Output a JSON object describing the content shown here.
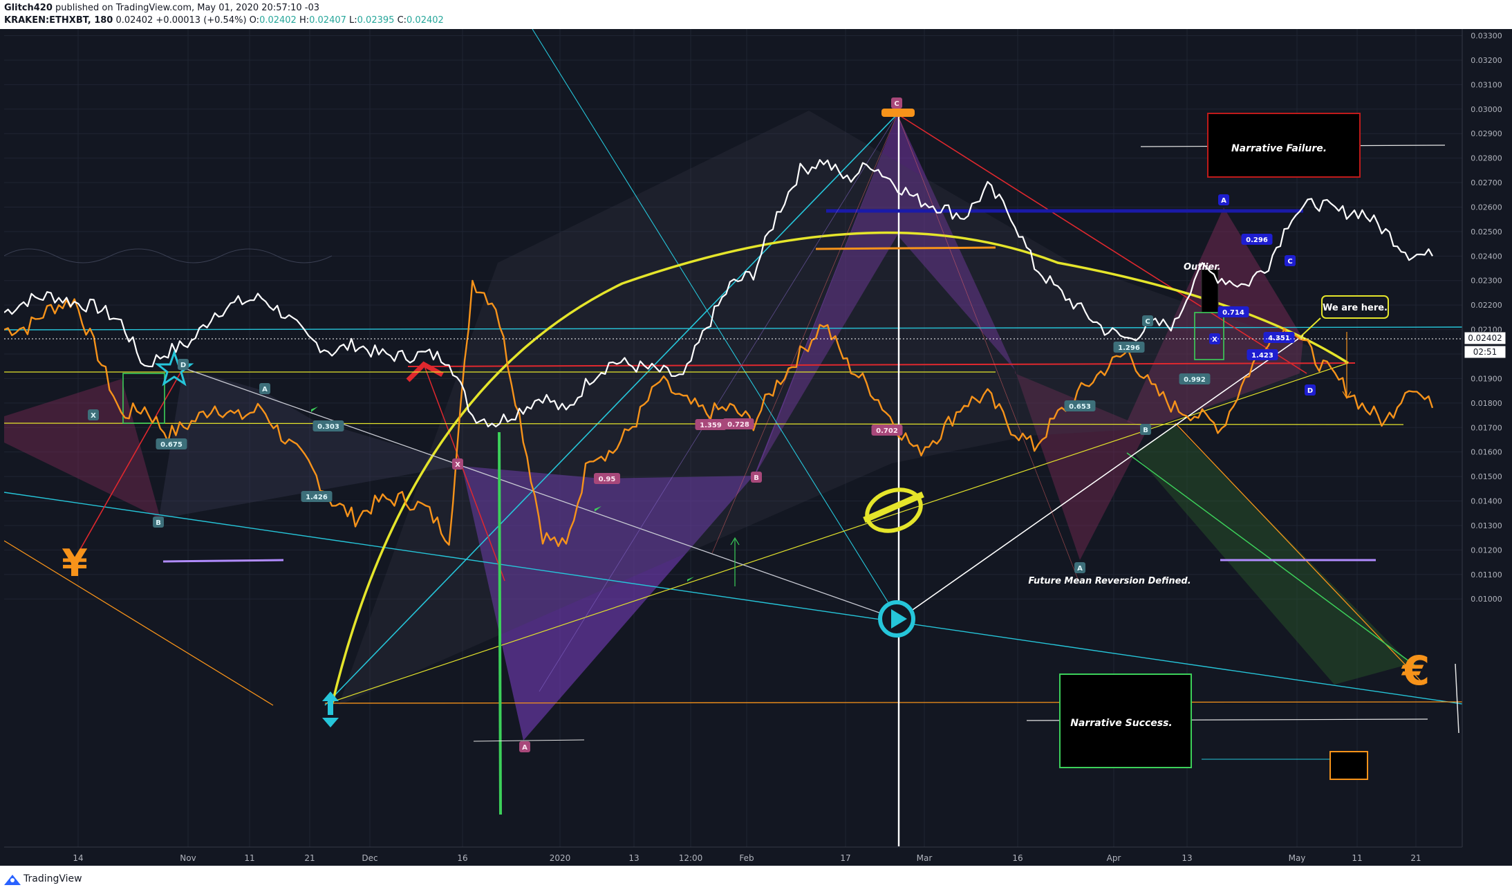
{
  "header": {
    "publisher": "Glitch420",
    "published_text": "published on TradingView.com, May 01, 2020 20:57:10 -03",
    "symbol": "KRAKEN:ETHXBT, 180",
    "last": "0.02402",
    "change": "+0.00013 (+0.54%)",
    "o_label": "O:",
    "o": "0.02402",
    "h_label": "H:",
    "h": "0.02407",
    "l_label": "L:",
    "l": "0.02395",
    "c_label": "C:",
    "c": "0.02402"
  },
  "footer": {
    "brand": "TradingView"
  },
  "price_badge": {
    "price": "0.02402",
    "countdown": "02:51"
  },
  "colors": {
    "background": "#131722",
    "price_line": "#ffffff",
    "orange_line": "#f7931a",
    "yellow": "#e5e52b",
    "cyan": "#26c6da",
    "red": "#e0282e",
    "purple": "#7e3fc6",
    "green": "#3cd05a"
  },
  "annotations": {
    "narrative_failure": "Narrative Failure.",
    "narrative_success": "Narrative Success.",
    "outlier": "Outlier.",
    "we_are_here": "We are here.",
    "future_mean": "Future Mean Reversion Defined.",
    "yen": "¥",
    "euro": "€"
  },
  "pattern_labels": [
    {
      "text": "D",
      "style": "teal"
    },
    {
      "text": "B",
      "style": "teal"
    },
    {
      "text": "A",
      "style": "teal"
    },
    {
      "text": "X",
      "style": "teal"
    },
    {
      "text": "0.675",
      "style": "teal"
    },
    {
      "text": "0.303",
      "style": "teal"
    },
    {
      "text": "1.426",
      "style": "teal"
    },
    {
      "text": "X",
      "style": "pink"
    },
    {
      "text": "A",
      "style": "pink"
    },
    {
      "text": "C",
      "style": "pink"
    },
    {
      "text": "0.95",
      "style": "pink"
    },
    {
      "text": "1.359",
      "style": "pink"
    },
    {
      "text": "0.728",
      "style": "pink"
    },
    {
      "text": "0.702",
      "style": "pink"
    },
    {
      "text": "B",
      "style": "pink"
    },
    {
      "text": "C",
      "style": "teal"
    },
    {
      "text": "1.296",
      "style": "teal"
    },
    {
      "text": "0.653",
      "style": "teal"
    },
    {
      "text": "A",
      "style": "teal"
    },
    {
      "text": "B",
      "style": "teal"
    },
    {
      "text": "0.992",
      "style": "teal"
    },
    {
      "text": "A",
      "style": "blue"
    },
    {
      "text": "0.296",
      "style": "blue"
    },
    {
      "text": "C",
      "style": "blue"
    },
    {
      "text": "0.714",
      "style": "blue"
    },
    {
      "text": "X",
      "style": "blue"
    },
    {
      "text": "4.351",
      "style": "blue"
    },
    {
      "text": "1.423",
      "style": "blue"
    },
    {
      "text": "D",
      "style": "blue"
    }
  ],
  "chart_data": {
    "type": "line",
    "symbol": "KRAKEN:ETHXBT",
    "interval": "180",
    "x_ticks": [
      "14",
      "Nov",
      "11",
      "21",
      "Dec",
      "16",
      "2020",
      "13",
      "12:00",
      "Feb",
      "17",
      "Mar",
      "16",
      "Apr",
      "13",
      "May",
      "11",
      "21"
    ],
    "y_ticks": [
      "0.03300",
      "0.03200",
      "0.03100",
      "0.03000",
      "0.02900",
      "0.02800",
      "0.02700",
      "0.02600",
      "0.02500",
      "0.02400",
      "0.02300",
      "0.02200",
      "0.02100",
      "0.02000",
      "0.01900",
      "0.01800",
      "0.01700",
      "0.01600",
      "0.01500",
      "0.01400",
      "0.01300",
      "0.01200",
      "0.01100",
      "0.01000"
    ],
    "ylim": [
      0.0092,
      0.033
    ],
    "grid": true,
    "series": [
      {
        "x": [
          "Oct 10",
          "Oct 14",
          "Oct 18",
          "Oct 22",
          "Oct 26",
          "Oct 29",
          "Oct 31",
          "Nov 3",
          "Nov 7",
          "Nov 11",
          "Nov 15",
          "Nov 19",
          "Nov 21",
          "Nov 25",
          "Nov 29",
          "Dec 3",
          "Dec 7",
          "Dec 11",
          "Dec 14",
          "Dec 17",
          "Dec 20",
          "Dec 24",
          "Dec 28",
          "Jan 1",
          "Jan 5",
          "Jan 9",
          "Jan 13",
          "Jan 17",
          "Jan 21",
          "Jan 25",
          "Jan 29",
          "Feb 2",
          "Feb 5",
          "Feb 8",
          "Feb 10",
          "Feb 12",
          "Feb 14",
          "Feb 17",
          "Feb 20",
          "Feb 23",
          "Feb 26",
          "Mar 1",
          "Mar 4",
          "Mar 7",
          "Mar 10",
          "Mar 12",
          "Mar 15",
          "Mar 18",
          "Mar 22",
          "Mar 26",
          "Mar 30",
          "Apr 3",
          "Apr 6",
          "Apr 9",
          "Apr 12",
          "Apr 15",
          "Apr 18",
          "Apr 21",
          "Apr 24",
          "Apr 27",
          "Apr 30",
          "May 1"
        ],
        "values": [
          0.0217,
          0.0222,
          0.0224,
          0.0221,
          0.0219,
          0.0213,
          0.0195,
          0.0201,
          0.0205,
          0.0217,
          0.0221,
          0.0223,
          0.0216,
          0.0206,
          0.0201,
          0.0204,
          0.02,
          0.0199,
          0.02,
          0.0198,
          0.0175,
          0.0172,
          0.0177,
          0.0183,
          0.0176,
          0.019,
          0.0197,
          0.0195,
          0.0193,
          0.019,
          0.0211,
          0.0228,
          0.0233,
          0.0257,
          0.0275,
          0.0279,
          0.0271,
          0.0278,
          0.027,
          0.0263,
          0.026,
          0.0256,
          0.0268,
          0.0257,
          0.0236,
          0.0226,
          0.0218,
          0.021,
          0.0206,
          0.0212,
          0.0212,
          0.0235,
          0.0231,
          0.0228,
          0.0237,
          0.0257,
          0.0262,
          0.0258,
          0.0258,
          0.025,
          0.0241,
          0.024
        ]
      },
      {
        "x": [
          "Oct 10",
          "Oct 14",
          "Oct 18",
          "Oct 22",
          "Oct 26",
          "Oct 29",
          "Oct 31",
          "Nov 3",
          "Nov 7",
          "Nov 11",
          "Nov 15",
          "Nov 19",
          "Nov 21",
          "Nov 25",
          "Nov 29",
          "Dec 3",
          "Dec 7",
          "Dec 11",
          "Dec 14",
          "Dec 17",
          "Dec 20",
          "Dec 24",
          "Dec 28",
          "Jan 1",
          "Jan 5",
          "Jan 9",
          "Jan 13",
          "Jan 17",
          "Jan 21",
          "Jan 25",
          "Jan 29",
          "Feb 2",
          "Feb 5",
          "Feb 8",
          "Feb 10",
          "Feb 12",
          "Feb 14",
          "Feb 17",
          "Feb 20",
          "Feb 23",
          "Feb 26",
          "Mar 1",
          "Mar 4",
          "Mar 7",
          "Mar 10",
          "Mar 12",
          "Mar 15",
          "Mar 18",
          "Mar 22",
          "Mar 26",
          "Mar 30",
          "Apr 3",
          "Apr 6",
          "Apr 9",
          "Apr 12",
          "Apr 15",
          "Apr 18",
          "Apr 21",
          "Apr 24",
          "Apr 27",
          "Apr 30",
          "May 1"
        ],
        "values": [
          0.021,
          0.0211,
          0.0219,
          0.0222,
          0.02,
          0.0175,
          0.0178,
          0.0167,
          0.0172,
          0.0179,
          0.0174,
          0.0178,
          0.0165,
          0.0155,
          0.014,
          0.0133,
          0.014,
          0.0141,
          0.0137,
          0.0125,
          0.023,
          0.022,
          0.0175,
          0.0126,
          0.0121,
          0.0159,
          0.016,
          0.0173,
          0.0189,
          0.0181,
          0.0176,
          0.0178,
          0.0172,
          0.0188,
          0.02,
          0.0213,
          0.0196,
          0.0186,
          0.0172,
          0.016,
          0.0168,
          0.018,
          0.0183,
          0.017,
          0.0162,
          0.0175,
          0.0185,
          0.0194,
          0.0201,
          0.0186,
          0.0178,
          0.0175,
          0.017,
          0.019,
          0.0207,
          0.0211,
          0.0198,
          0.0189,
          0.0179,
          0.0172,
          0.0188,
          0.0178
        ]
      }
    ]
  }
}
